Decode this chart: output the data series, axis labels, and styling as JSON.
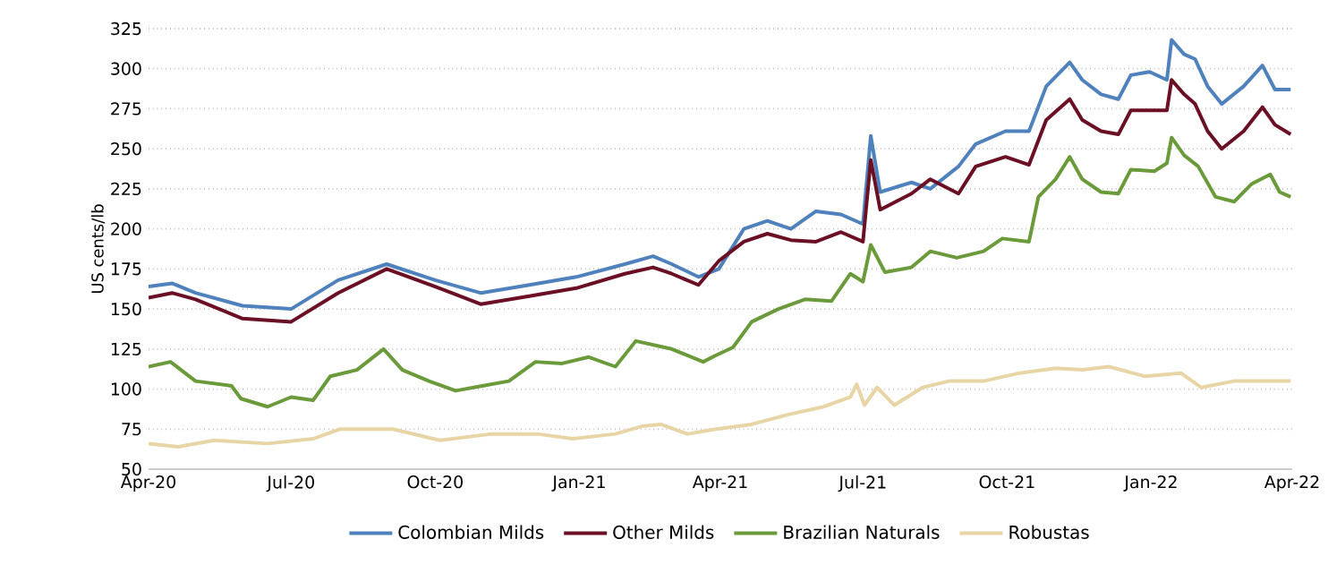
{
  "chart_data": {
    "type": "line",
    "ylabel": "US cents/lb",
    "xlim": [
      "2020-04-01",
      "2022-04-01"
    ],
    "xticks": [
      {
        "value": "2020-04-01",
        "label": "Apr-20"
      },
      {
        "value": "2020-07-01",
        "label": "Jul-20"
      },
      {
        "value": "2020-10-01",
        "label": "Oct-20"
      },
      {
        "value": "2021-01-01",
        "label": "Jan-21"
      },
      {
        "value": "2021-04-01",
        "label": "Apr-21"
      },
      {
        "value": "2021-07-01",
        "label": "Jul-21"
      },
      {
        "value": "2021-10-01",
        "label": "Oct-21"
      },
      {
        "value": "2022-01-01",
        "label": "Jan-22"
      },
      {
        "value": "2022-04-01",
        "label": "Apr-22"
      }
    ],
    "ylim": [
      50,
      325
    ],
    "yticks": [
      50,
      75,
      100,
      125,
      150,
      175,
      200,
      225,
      250,
      275,
      300,
      325
    ],
    "grid": "y",
    "legend": "bottom",
    "series": [
      {
        "name": "Colombian Milds",
        "color": "#4f81bd",
        "x": [
          "2020-04-01",
          "2020-04-16",
          "2020-05-01",
          "2020-05-31",
          "2020-07-01",
          "2020-07-31",
          "2020-08-31",
          "2020-10-01",
          "2020-10-30",
          "2020-11-30",
          "2020-12-30",
          "2021-01-30",
          "2021-02-17",
          "2021-03-01",
          "2021-03-18",
          "2021-03-31",
          "2021-04-16",
          "2021-05-01",
          "2021-05-16",
          "2021-06-01",
          "2021-06-17",
          "2021-07-01",
          "2021-07-06",
          "2021-07-12",
          "2021-08-01",
          "2021-08-13",
          "2021-08-31",
          "2021-09-11",
          "2021-09-30",
          "2021-10-15",
          "2021-10-26",
          "2021-11-10",
          "2021-11-18",
          "2021-11-30",
          "2021-12-11",
          "2021-12-19",
          "2021-12-31",
          "2022-01-11",
          "2022-01-14",
          "2022-01-22",
          "2022-01-29",
          "2022-02-06",
          "2022-02-15",
          "2022-03-01",
          "2022-03-13",
          "2022-03-21",
          "2022-03-31"
        ],
        "values": [
          164,
          166,
          160,
          152,
          150,
          168,
          178,
          168,
          160,
          165,
          170,
          178,
          183,
          178,
          170,
          175,
          200,
          205,
          200,
          211,
          209,
          203,
          258,
          223,
          229,
          225,
          239,
          253,
          261,
          261,
          289,
          304,
          293,
          284,
          281,
          296,
          298,
          293,
          318,
          309,
          306,
          289,
          278,
          289,
          302,
          287,
          287
        ]
      },
      {
        "name": "Other Milds",
        "color": "#6b0f24",
        "x": [
          "2020-04-01",
          "2020-04-16",
          "2020-05-01",
          "2020-05-31",
          "2020-07-01",
          "2020-07-31",
          "2020-08-31",
          "2020-10-01",
          "2020-10-30",
          "2020-11-30",
          "2020-12-30",
          "2021-01-30",
          "2021-02-17",
          "2021-03-01",
          "2021-03-18",
          "2021-03-31",
          "2021-04-16",
          "2021-05-01",
          "2021-05-16",
          "2021-06-01",
          "2021-06-17",
          "2021-07-01",
          "2021-07-06",
          "2021-07-12",
          "2021-08-01",
          "2021-08-13",
          "2021-08-31",
          "2021-09-11",
          "2021-09-30",
          "2021-10-15",
          "2021-10-26",
          "2021-11-10",
          "2021-11-18",
          "2021-11-30",
          "2021-12-11",
          "2021-12-19",
          "2021-12-31",
          "2022-01-11",
          "2022-01-14",
          "2022-01-22",
          "2022-01-29",
          "2022-02-06",
          "2022-02-15",
          "2022-03-01",
          "2022-03-13",
          "2022-03-21",
          "2022-03-31"
        ],
        "values": [
          157,
          160,
          156,
          144,
          142,
          160,
          175,
          164,
          153,
          158,
          163,
          172,
          176,
          172,
          165,
          180,
          192,
          197,
          193,
          192,
          198,
          192,
          243,
          212,
          222,
          231,
          222,
          239,
          245,
          240,
          268,
          281,
          268,
          261,
          259,
          274,
          274,
          274,
          293,
          284,
          278,
          261,
          250,
          261,
          276,
          265,
          259
        ]
      },
      {
        "name": "Brazilian Naturals",
        "color": "#6a9a3a",
        "x": [
          "2020-04-01",
          "2020-04-15",
          "2020-05-01",
          "2020-05-24",
          "2020-05-30",
          "2020-06-16",
          "2020-07-01",
          "2020-07-15",
          "2020-07-26",
          "2020-08-12",
          "2020-08-29",
          "2020-09-10",
          "2020-09-27",
          "2020-10-14",
          "2020-10-31",
          "2020-11-17",
          "2020-12-04",
          "2020-12-21",
          "2021-01-07",
          "2021-01-24",
          "2021-02-06",
          "2021-03-01",
          "2021-03-21",
          "2021-03-29",
          "2021-04-09",
          "2021-04-21",
          "2021-05-08",
          "2021-05-25",
          "2021-06-11",
          "2021-06-23",
          "2021-07-01",
          "2021-07-06",
          "2021-07-15",
          "2021-08-01",
          "2021-08-13",
          "2021-08-30",
          "2021-09-16",
          "2021-09-28",
          "2021-10-15",
          "2021-10-21",
          "2021-11-01",
          "2021-11-10",
          "2021-11-18",
          "2021-11-30",
          "2021-12-11",
          "2021-12-19",
          "2022-01-03",
          "2022-01-11",
          "2022-01-14",
          "2022-01-22",
          "2022-01-31",
          "2022-02-11",
          "2022-02-23",
          "2022-03-06",
          "2022-03-18",
          "2022-03-24",
          "2022-03-31"
        ],
        "values": [
          114,
          117,
          105,
          102,
          94,
          89,
          95,
          93,
          108,
          112,
          125,
          112,
          105,
          99,
          102,
          105,
          117,
          116,
          120,
          114,
          130,
          125,
          117,
          121,
          126,
          142,
          150,
          156,
          155,
          172,
          167,
          190,
          173,
          176,
          186,
          182,
          186,
          194,
          192,
          220,
          231,
          245,
          231,
          223,
          222,
          237,
          236,
          241,
          257,
          246,
          239,
          220,
          217,
          228,
          234,
          223,
          220
        ]
      },
      {
        "name": "Robustas",
        "color": "#e8d5a6",
        "x": [
          "2020-04-01",
          "2020-04-20",
          "2020-05-13",
          "2020-06-16",
          "2020-07-15",
          "2020-08-01",
          "2020-09-04",
          "2020-10-04",
          "2020-11-06",
          "2020-12-05",
          "2020-12-28",
          "2021-01-24",
          "2021-02-11",
          "2021-02-22",
          "2021-03-11",
          "2021-03-29",
          "2021-04-21",
          "2021-05-14",
          "2021-06-06",
          "2021-06-23",
          "2021-06-27",
          "2021-07-02",
          "2021-07-10",
          "2021-07-21",
          "2021-08-08",
          "2021-08-25",
          "2021-09-16",
          "2021-10-09",
          "2021-11-01",
          "2021-11-18",
          "2021-12-05",
          "2021-12-28",
          "2022-01-20",
          "2022-02-02",
          "2022-02-23",
          "2022-03-13",
          "2022-03-31"
        ],
        "values": [
          66,
          64,
          68,
          66,
          69,
          75,
          75,
          68,
          72,
          72,
          69,
          72,
          77,
          78,
          72,
          75,
          78,
          84,
          89,
          95,
          103,
          90,
          101,
          90,
          101,
          105,
          105,
          110,
          113,
          112,
          114,
          108,
          110,
          101,
          105,
          105,
          105
        ]
      }
    ]
  }
}
